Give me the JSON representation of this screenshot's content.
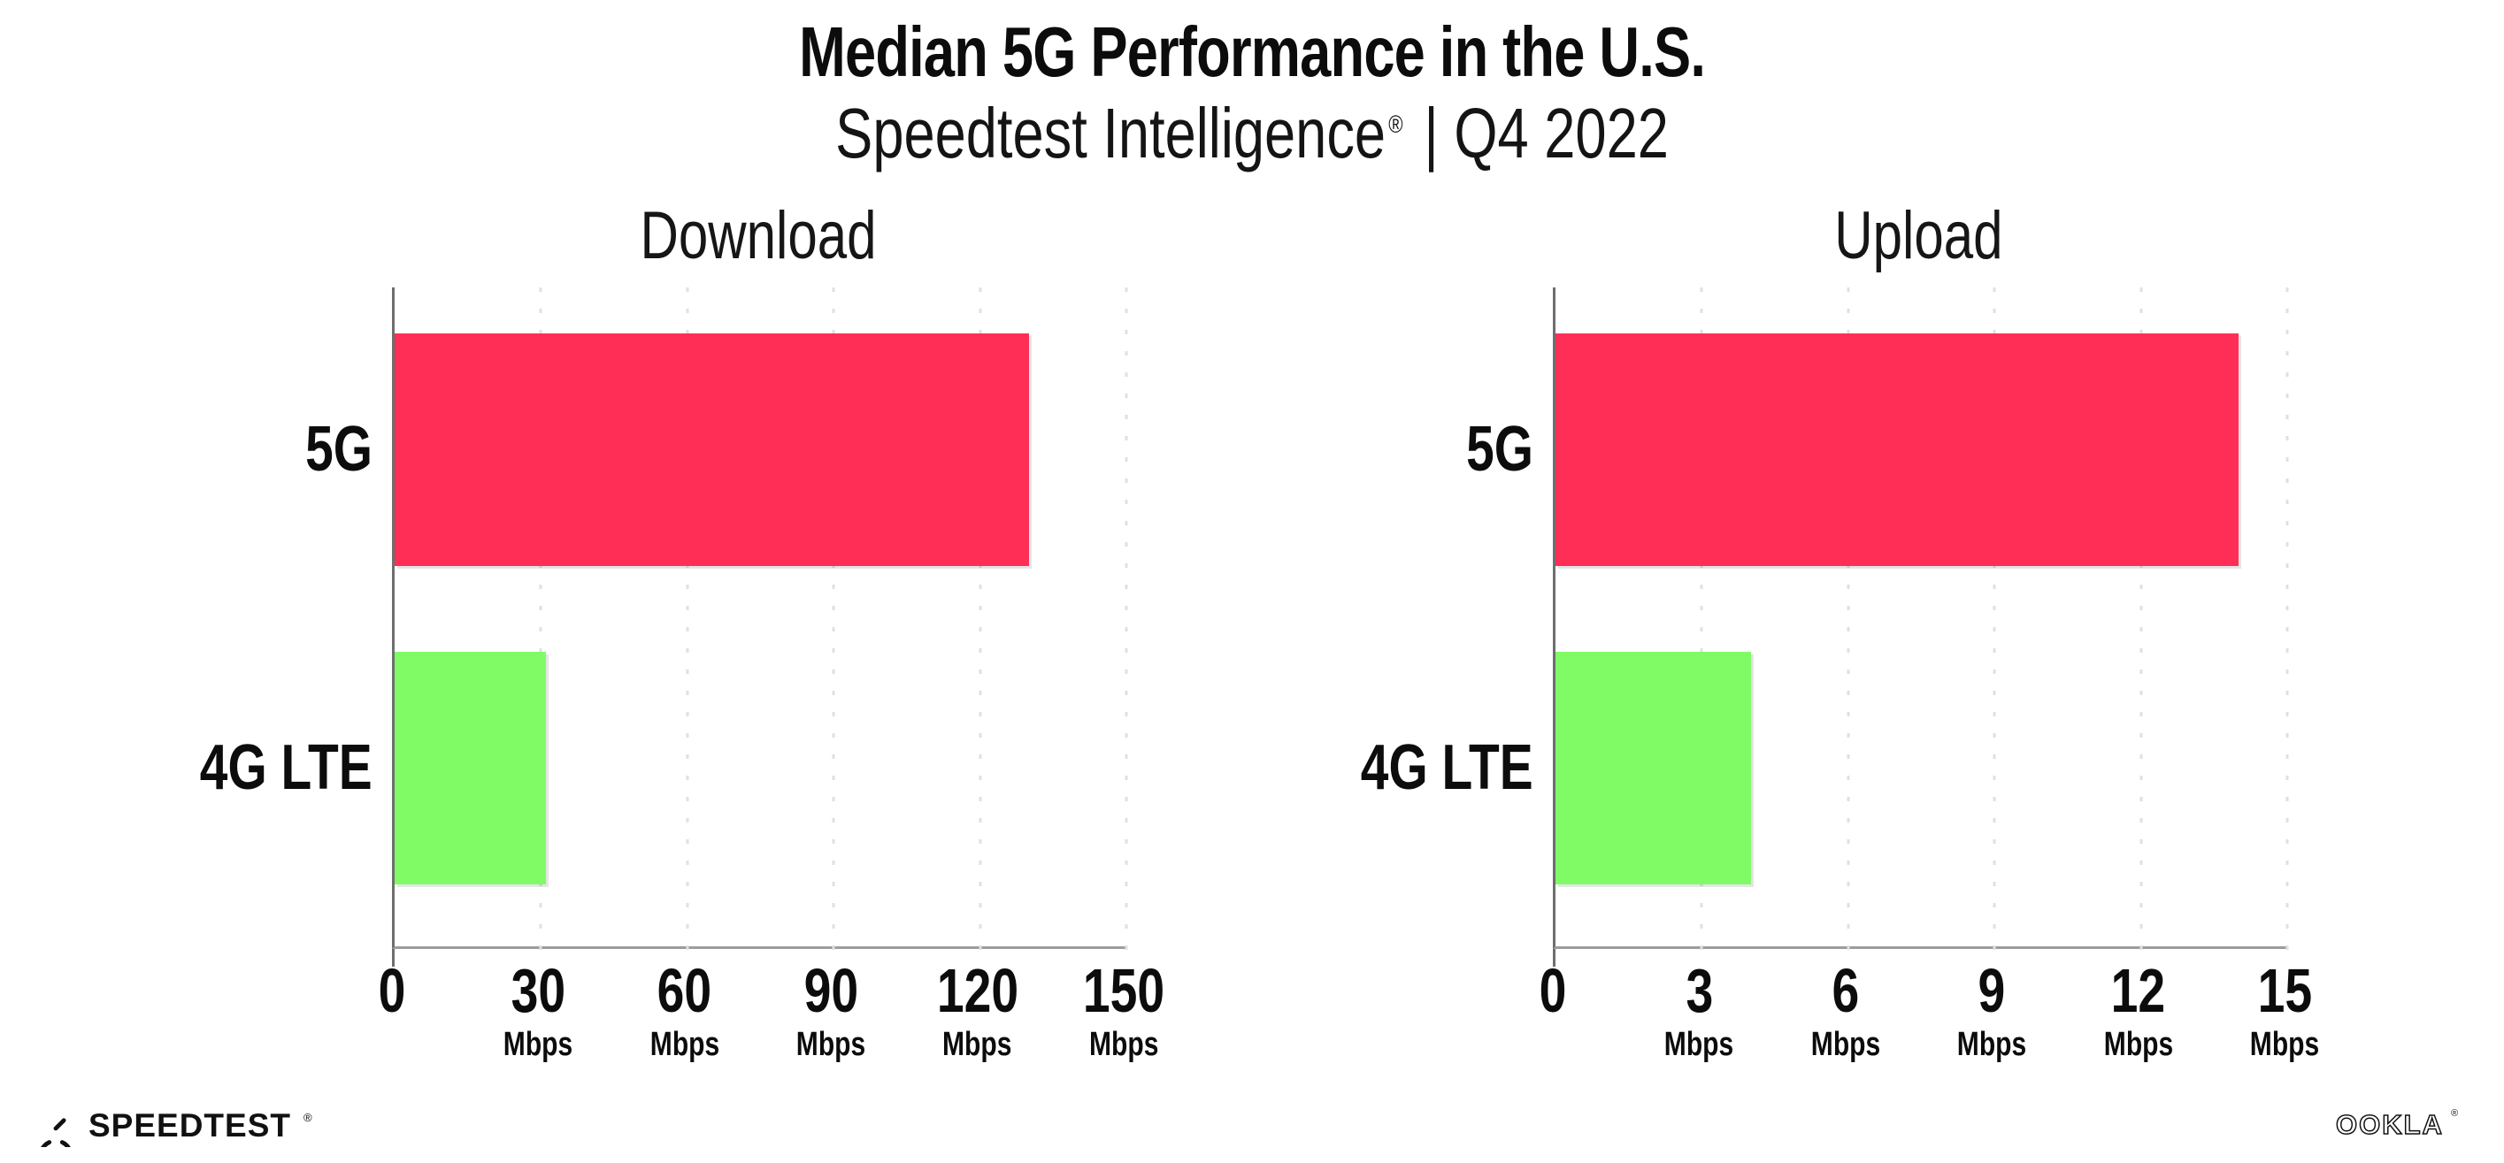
{
  "header": {
    "title": "Median 5G Performance in the U.S.",
    "subtitle_brand": "Speedtest Intelligence",
    "subtitle_reg": "®",
    "subtitle_rest": " | Q4 2022"
  },
  "chart_data": [
    {
      "type": "bar",
      "orientation": "horizontal",
      "title": "Download",
      "categories": [
        "5G",
        "4G LTE"
      ],
      "values": [
        130,
        31
      ],
      "value_unit": "Mbps",
      "bar_colors": [
        "#ff2e56",
        "#80fb66"
      ],
      "xlim": [
        0,
        150
      ],
      "xticks": [
        0,
        30,
        60,
        90,
        120,
        150
      ],
      "tick_unit": "Mbps",
      "grid": "dotted-vertical-gridlines",
      "legend": "none"
    },
    {
      "type": "bar",
      "orientation": "horizontal",
      "title": "Upload",
      "categories": [
        "5G",
        "4G LTE"
      ],
      "values": [
        14,
        4
      ],
      "value_unit": "Mbps",
      "bar_colors": [
        "#ff2e56",
        "#80fb66"
      ],
      "xlim": [
        0,
        15
      ],
      "xticks": [
        0,
        3,
        6,
        9,
        12,
        15
      ],
      "tick_unit": "Mbps",
      "grid": "dotted-vertical-gridlines",
      "legend": "none"
    }
  ],
  "colors": {
    "bar_5g": "#ff2e56",
    "bar_4g_lte": "#80fb66",
    "gridline": "#dfdfea",
    "axis": "#6e6e6e",
    "text": "#0c0c0c"
  },
  "footer": {
    "speedtest_logo_text": "SPEEDTEST",
    "speedtest_reg": "®",
    "ookla_logo_text": "OOKLA",
    "ookla_reg": "®"
  }
}
